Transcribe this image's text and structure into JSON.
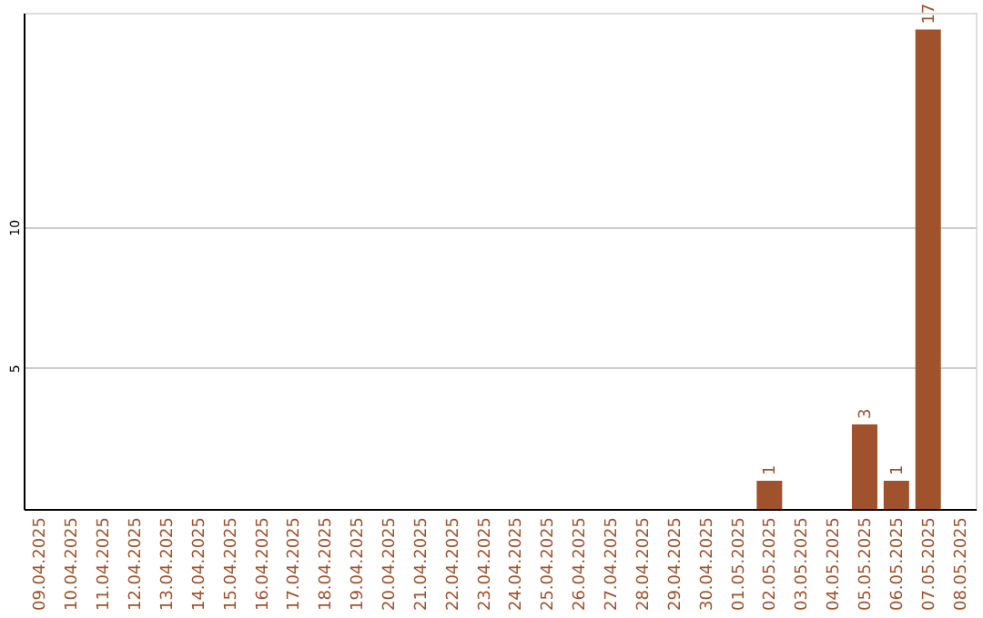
{
  "chart_data": {
    "type": "bar",
    "categories": [
      "09.04.2025",
      "10.04.2025",
      "11.04.2025",
      "12.04.2025",
      "13.04.2025",
      "14.04.2025",
      "15.04.2025",
      "16.04.2025",
      "17.04.2025",
      "18.04.2025",
      "19.04.2025",
      "20.04.2025",
      "21.04.2025",
      "22.04.2025",
      "23.04.2025",
      "24.04.2025",
      "25.04.2025",
      "26.04.2025",
      "27.04.2025",
      "28.04.2025",
      "29.04.2025",
      "30.04.2025",
      "01.05.2025",
      "02.05.2025",
      "03.05.2025",
      "04.05.2025",
      "05.05.2025",
      "06.05.2025",
      "07.05.2025",
      "08.05.2025"
    ],
    "values": [
      0,
      0,
      0,
      0,
      0,
      0,
      0,
      0,
      0,
      0,
      0,
      0,
      0,
      0,
      0,
      0,
      0,
      0,
      0,
      0,
      0,
      0,
      0,
      1,
      0,
      0,
      3,
      1,
      17,
      0
    ],
    "value_labels": [
      null,
      null,
      null,
      null,
      null,
      null,
      null,
      null,
      null,
      null,
      null,
      null,
      null,
      null,
      null,
      null,
      null,
      null,
      null,
      null,
      null,
      null,
      null,
      "1",
      null,
      null,
      "3",
      "1",
      "17",
      null
    ],
    "color": "#a0522d",
    "ylim": [
      0,
      17.6
    ],
    "yticks": [
      5,
      10
    ],
    "grid": "y"
  }
}
